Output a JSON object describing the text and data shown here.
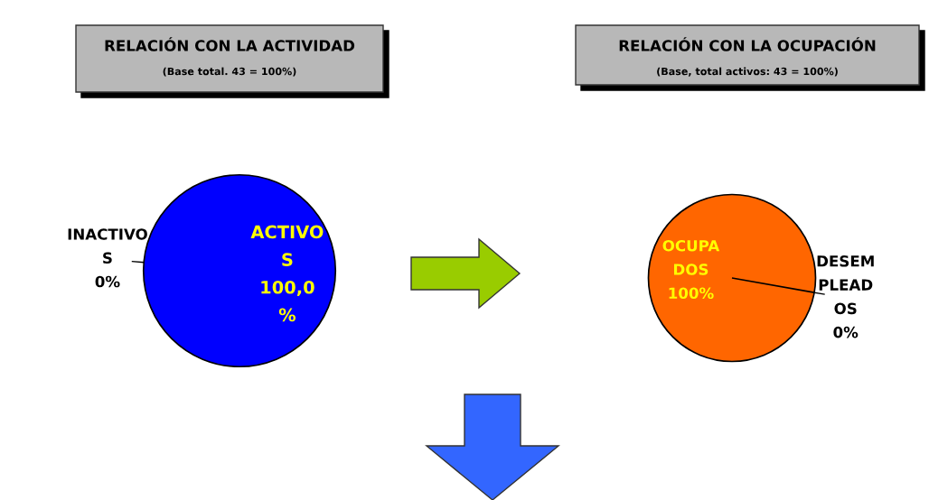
{
  "chart_data": [
    {
      "type": "pie",
      "title": "RELACIÓN CON LA ACTIVIDAD",
      "subtitle": "(Base total. 43 = 100%)",
      "categories": [
        "INACTIVO\nS",
        "ACTIVO\nS"
      ],
      "values": [
        0,
        100
      ],
      "colors": [
        "#ffffff",
        "#0000ff"
      ],
      "value_labels": [
        "0%",
        "100,0\n%"
      ]
    },
    {
      "type": "pie",
      "title": "RELACIÓN CON LA OCUPACIÓN",
      "subtitle": "(Base, total activos: 43 = 100%)",
      "categories": [
        "OCUPA\nDOS",
        "DESEM\nPLEAD\nOS"
      ],
      "values": [
        100,
        0
      ],
      "colors": [
        "#ff6600",
        "#ffffff"
      ],
      "value_labels": [
        "100%",
        "0%"
      ]
    }
  ]
}
